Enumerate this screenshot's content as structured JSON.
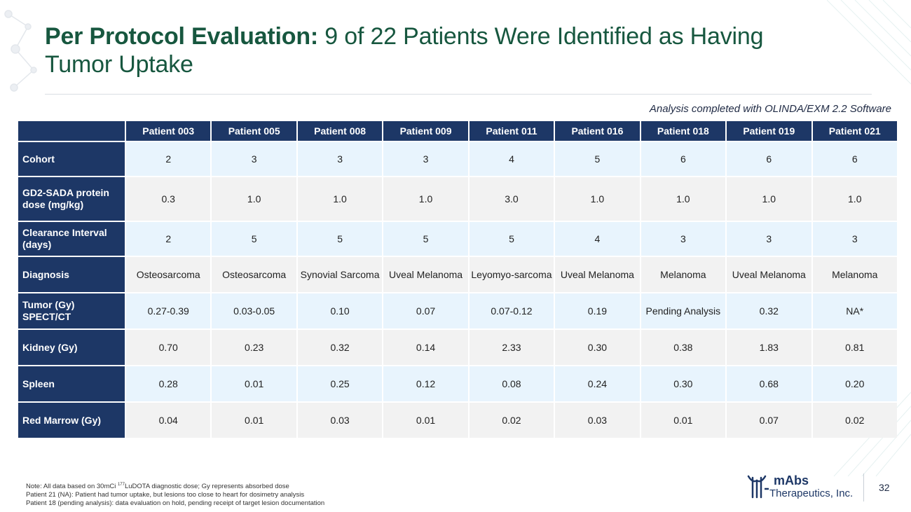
{
  "title": {
    "bold": "Per Protocol Evaluation:",
    "rest": " 9 of 22 Patients Were Identified as Having Tumor Uptake"
  },
  "analysis_note": "Analysis completed with OLINDA/EXM 2.2 Software",
  "table": {
    "columns": [
      "Patient 003",
      "Patient 005",
      "Patient 008",
      "Patient 009",
      "Patient 011",
      "Patient 016",
      "Patient 018",
      "Patient 019",
      "Patient 021"
    ],
    "rows": [
      {
        "label": "Cohort",
        "values": [
          "2",
          "3",
          "3",
          "3",
          "4",
          "5",
          "6",
          "6",
          "6"
        ]
      },
      {
        "label": "GD2-SADA protein dose (mg/kg)",
        "values": [
          "0.3",
          "1.0",
          "1.0",
          "1.0",
          "3.0",
          "1.0",
          "1.0",
          "1.0",
          "1.0"
        ]
      },
      {
        "label": "Clearance Interval (days)",
        "values": [
          "2",
          "5",
          "5",
          "5",
          "5",
          "4",
          "3",
          "3",
          "3"
        ]
      },
      {
        "label": "Diagnosis",
        "values": [
          "Osteosarcoma",
          "Osteosarcoma",
          "Synovial Sarcoma",
          "Uveal Melanoma",
          "Leyomyo-sarcoma",
          "Uveal Melanoma",
          "Melanoma",
          "Uveal Melanoma",
          "Melanoma"
        ]
      },
      {
        "label": "Tumor (Gy) SPECT/CT",
        "values": [
          "0.27-0.39",
          "0.03-0.05",
          "0.10",
          "0.07",
          "0.07-0.12",
          "0.19",
          "Pending Analysis",
          "0.32",
          "NA*"
        ]
      },
      {
        "label": "Kidney (Gy)",
        "values": [
          "0.70",
          "0.23",
          "0.32",
          "0.14",
          "2.33",
          "0.30",
          "0.38",
          "1.83",
          "0.81"
        ]
      },
      {
        "label": "Spleen",
        "values": [
          "0.28",
          "0.01",
          "0.25",
          "0.12",
          "0.08",
          "0.24",
          "0.30",
          "0.68",
          "0.20"
        ]
      },
      {
        "label": "Red Marrow (Gy)",
        "values": [
          "0.04",
          "0.01",
          "0.03",
          "0.01",
          "0.02",
          "0.03",
          "0.01",
          "0.07",
          "0.02"
        ]
      }
    ]
  },
  "footnotes": {
    "line1_a": "Note: All data based on 30mCi ",
    "line1_sup": "177",
    "line1_b": "LuDOTA diagnostic dose; Gy represents absorbed dose",
    "line2": "Patient 21 (NA): Patient had tumor uptake, but lesions too close to heart for dosimetry analysis",
    "line3": "Patient 18 (pending analysis): data evaluation on hold, pending receipt of target lesion documentation"
  },
  "logo": {
    "name1": "mAbs",
    "name2": "Therapeutics, Inc."
  },
  "page_number": "32",
  "colors": {
    "header_bg": "#1d3766",
    "title_green": "#17573f",
    "row_alt": "#e8f4fd",
    "row_norm": "#f2f2f2"
  }
}
